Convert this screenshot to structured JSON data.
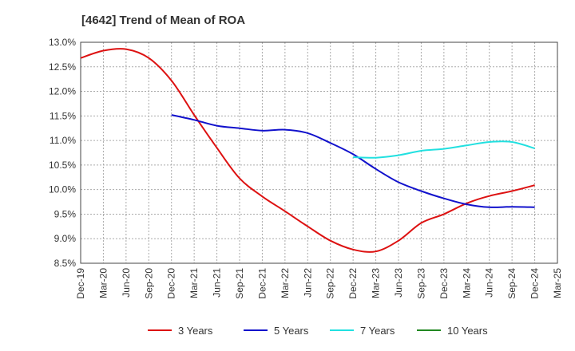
{
  "chart_data": {
    "type": "line",
    "title": "[4642]  Trend of Mean of ROA",
    "xlabel": "",
    "ylabel": "",
    "x": [
      "Dec-19",
      "Mar-20",
      "Jun-20",
      "Sep-20",
      "Dec-20",
      "Mar-21",
      "Jun-21",
      "Sep-21",
      "Dec-21",
      "Mar-22",
      "Jun-22",
      "Sep-22",
      "Dec-22",
      "Mar-23",
      "Jun-23",
      "Sep-23",
      "Dec-23",
      "Mar-24",
      "Jun-24",
      "Sep-24",
      "Dec-24",
      "Mar-25"
    ],
    "y_ticks": [
      "8.5%",
      "9.0%",
      "9.5%",
      "10.0%",
      "10.5%",
      "11.0%",
      "11.5%",
      "12.0%",
      "12.5%",
      "13.0%"
    ],
    "ylim": [
      8.5,
      13.0
    ],
    "grid": true,
    "legend_position": "bottom",
    "series": [
      {
        "name": "3 Years",
        "color": "#dd1111",
        "values": [
          12.68,
          12.83,
          12.86,
          12.68,
          12.22,
          11.52,
          10.85,
          10.23,
          9.86,
          9.56,
          9.25,
          8.96,
          8.78,
          8.74,
          8.96,
          9.32,
          9.5,
          9.72,
          9.87,
          9.97,
          10.09,
          null
        ]
      },
      {
        "name": "5 Years",
        "color": "#1111cc",
        "values": [
          null,
          null,
          null,
          null,
          11.52,
          11.42,
          11.3,
          11.25,
          11.2,
          11.22,
          11.15,
          10.95,
          10.72,
          10.42,
          10.15,
          9.97,
          9.82,
          9.7,
          9.64,
          9.65,
          9.64,
          null
        ]
      },
      {
        "name": "7 Years",
        "color": "#22e0e0",
        "values": [
          null,
          null,
          null,
          null,
          null,
          null,
          null,
          null,
          null,
          null,
          null,
          null,
          10.66,
          10.65,
          10.7,
          10.79,
          10.83,
          10.9,
          10.97,
          10.97,
          10.84,
          null
        ]
      },
      {
        "name": "10 Years",
        "color": "#228822",
        "values": [
          null,
          null,
          null,
          null,
          null,
          null,
          null,
          null,
          null,
          null,
          null,
          null,
          null,
          null,
          null,
          null,
          null,
          null,
          null,
          null,
          null,
          null
        ]
      }
    ]
  }
}
